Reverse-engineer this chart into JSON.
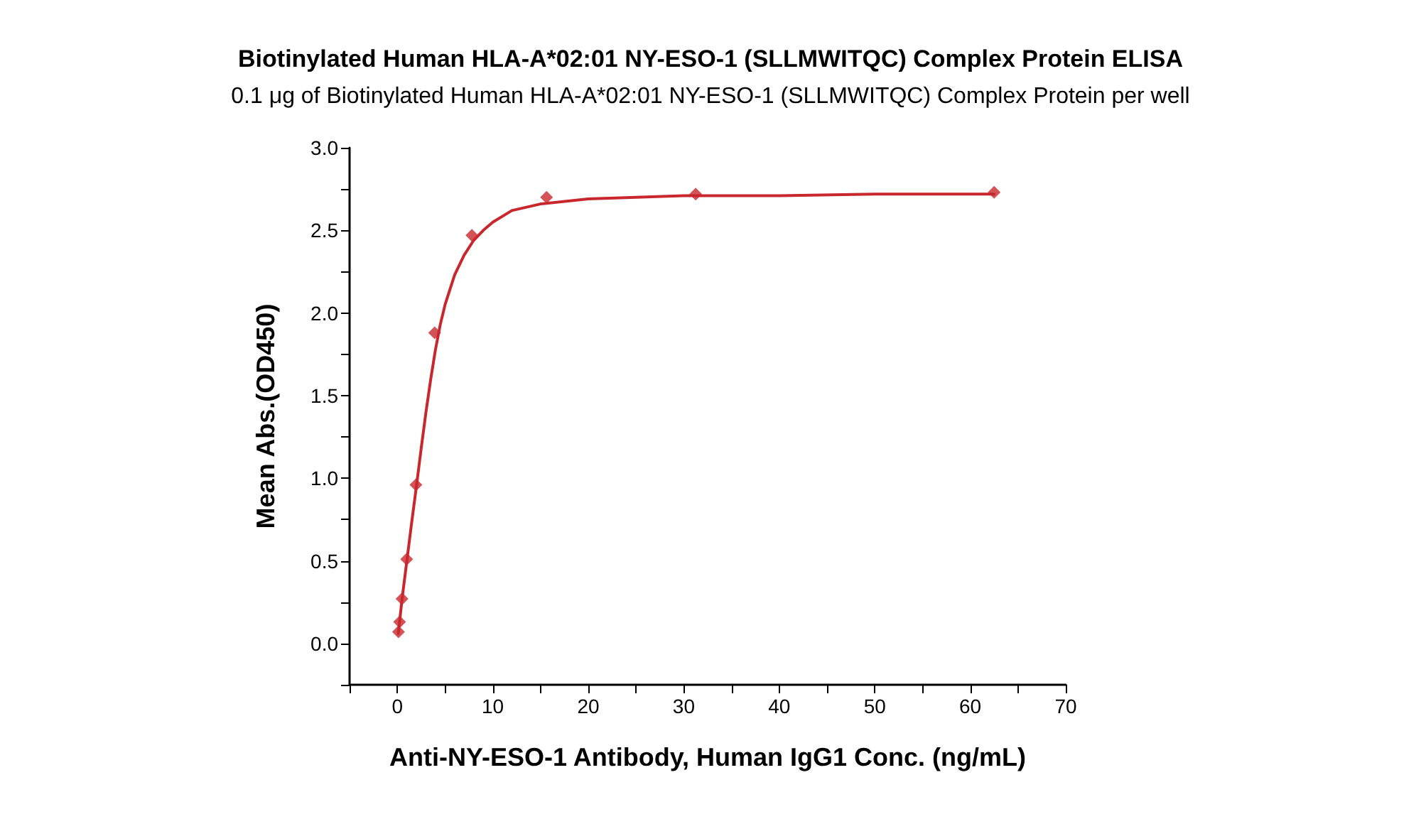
{
  "chart_data": {
    "type": "scatter",
    "title": "Biotinylated Human HLA-A*02:01 NY-ESO-1 (SLLMWITQC) Complex Protein ELISA",
    "subtitle": "0.1 μg of Biotinylated Human HLA-A*02:01 NY-ESO-1 (SLLMWITQC) Complex Protein per well",
    "xlabel": "Anti-NY-ESO-1 Antibody, Human IgG1 Conc. (ng/mL)",
    "ylabel": "Mean Abs.(OD450)",
    "series": [
      {
        "color": "#c8282d",
        "marker": "diamond",
        "x": [
          0.12,
          0.24,
          0.49,
          0.98,
          1.95,
          3.91,
          7.81,
          15.63,
          31.25,
          62.5
        ],
        "values": [
          0.07,
          0.13,
          0.27,
          0.51,
          0.96,
          1.88,
          2.47,
          2.7,
          2.72,
          2.73
        ]
      },
      {
        "type": "line",
        "color": "#c8282d",
        "marker": "none",
        "line_style": "solid",
        "x": [
          0.1,
          0.5,
          1,
          1.5,
          2,
          2.5,
          3,
          3.5,
          4,
          4.5,
          5,
          6,
          7,
          8,
          9,
          10,
          12,
          15,
          20,
          25,
          30,
          40,
          50,
          62.5
        ],
        "values": [
          0.06,
          0.27,
          0.5,
          0.73,
          0.95,
          1.18,
          1.4,
          1.6,
          1.78,
          1.93,
          2.05,
          2.23,
          2.35,
          2.44,
          2.5,
          2.55,
          2.62,
          2.66,
          2.69,
          2.7,
          2.71,
          2.71,
          2.72,
          2.72
        ]
      }
    ],
    "xlim": [
      -5,
      70
    ],
    "xticks": [
      {
        "value": -5,
        "label": null
      },
      0,
      {
        "value": 5,
        "label": null
      },
      10,
      {
        "value": 15,
        "label": null
      },
      20,
      {
        "value": 25,
        "label": null
      },
      30,
      {
        "value": 35,
        "label": null
      },
      40,
      {
        "value": 45,
        "label": null
      },
      50,
      {
        "value": 55,
        "label": null
      },
      60,
      {
        "value": 65,
        "label": null
      },
      70
    ],
    "ylim": [
      -0.25,
      3
    ],
    "yticks": [
      {
        "value": -0.25,
        "label": null
      },
      {
        "value": 0,
        "label": "0.0"
      },
      {
        "value": 0.25,
        "label": null
      },
      0.5,
      {
        "value": 0.75,
        "label": null
      },
      {
        "value": 1,
        "label": "1.0"
      },
      {
        "value": 1.25,
        "label": null
      },
      1.5,
      {
        "value": 1.75,
        "label": null
      },
      {
        "value": 2,
        "label": "2.0"
      },
      {
        "value": 2.25,
        "label": null
      },
      2.5,
      {
        "value": 2.75,
        "label": null
      },
      {
        "value": 3,
        "label": "3.0"
      }
    ],
    "grid": false
  }
}
